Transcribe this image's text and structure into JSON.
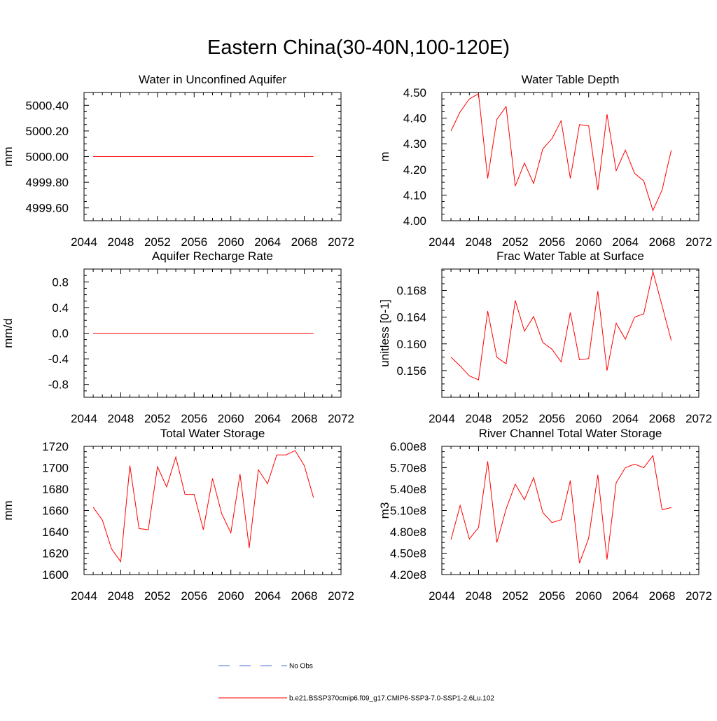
{
  "figure": {
    "title": "Eastern China(30-40N,100-120E)"
  },
  "legend": {
    "obs_label": "No Obs",
    "obs_color": "#4a6fd1",
    "model_label": "b.e21.BSSP370cmip6.f09_g17.CMIP6-SSP3-7.0-SSP1-2.6Lu.102",
    "model_color": "#ff0000"
  },
  "chart_data": [
    {
      "type": "line",
      "title": "Water in Unconfined Aquifer",
      "ylabel": "mm",
      "xlim": [
        2044,
        2072
      ],
      "ylim": [
        4999.5,
        5000.5
      ],
      "xticks": [
        "2044",
        "2048",
        "2052",
        "2056",
        "2060",
        "2064",
        "2068",
        "2072"
      ],
      "yticks": [
        "4999.60",
        "4999.80",
        "5000.00",
        "5000.20",
        "5000.40"
      ],
      "x": [
        2045,
        2046,
        2047,
        2048,
        2049,
        2050,
        2051,
        2052,
        2053,
        2054,
        2055,
        2056,
        2057,
        2058,
        2059,
        2060,
        2061,
        2062,
        2063,
        2064,
        2065,
        2066,
        2067,
        2068,
        2069
      ],
      "series": [
        {
          "values": [
            5000,
            5000,
            5000,
            5000,
            5000,
            5000,
            5000,
            5000,
            5000,
            5000,
            5000,
            5000,
            5000,
            5000,
            5000,
            5000,
            5000,
            5000,
            5000,
            5000,
            5000,
            5000,
            5000,
            5000,
            5000
          ]
        }
      ]
    },
    {
      "type": "line",
      "title": "Water Table Depth",
      "ylabel": "m",
      "xlim": [
        2044,
        2072
      ],
      "ylim": [
        4.0,
        4.5
      ],
      "xticks": [
        "2044",
        "2048",
        "2052",
        "2056",
        "2060",
        "2064",
        "2068",
        "2072"
      ],
      "yticks": [
        "4.00",
        "4.10",
        "4.20",
        "4.30",
        "4.40",
        "4.50"
      ],
      "x": [
        2045,
        2046,
        2047,
        2048,
        2049,
        2050,
        2051,
        2052,
        2053,
        2054,
        2055,
        2056,
        2057,
        2058,
        2059,
        2060,
        2061,
        2062,
        2063,
        2064,
        2065,
        2066,
        2067,
        2068,
        2069
      ],
      "series": [
        {
          "values": [
            4.35,
            4.425,
            4.475,
            4.495,
            4.165,
            4.395,
            4.445,
            4.135,
            4.225,
            4.145,
            4.28,
            4.32,
            4.39,
            4.165,
            4.375,
            4.37,
            4.12,
            4.415,
            4.195,
            4.275,
            4.185,
            4.155,
            4.04,
            4.12,
            4.275
          ]
        }
      ]
    },
    {
      "type": "line",
      "title": "Aquifer Recharge Rate",
      "ylabel": "mm/d",
      "xlim": [
        2044,
        2072
      ],
      "ylim": [
        -1.0,
        1.0
      ],
      "xticks": [
        "2044",
        "2048",
        "2052",
        "2056",
        "2060",
        "2064",
        "2068",
        "2072"
      ],
      "yticks": [
        "-0.8",
        "-0.4",
        "0.0",
        "0.4",
        "0.8"
      ],
      "x": [
        2045,
        2046,
        2047,
        2048,
        2049,
        2050,
        2051,
        2052,
        2053,
        2054,
        2055,
        2056,
        2057,
        2058,
        2059,
        2060,
        2061,
        2062,
        2063,
        2064,
        2065,
        2066,
        2067,
        2068,
        2069
      ],
      "series": [
        {
          "values": [
            0,
            0,
            0,
            0,
            0,
            0,
            0,
            0,
            0,
            0,
            0,
            0,
            0,
            0,
            0,
            0,
            0,
            0,
            0,
            0,
            0,
            0,
            0,
            0,
            0
          ]
        }
      ]
    },
    {
      "type": "line",
      "title": "Frac Water Table at Surface",
      "ylabel": "unitless [0-1]",
      "xlim": [
        2044,
        2072
      ],
      "ylim": [
        0.152,
        0.1712
      ],
      "xticks": [
        "2044",
        "2048",
        "2052",
        "2056",
        "2060",
        "2064",
        "2068",
        "2072"
      ],
      "yticks": [
        "0.156",
        "0.160",
        "0.164",
        "0.168"
      ],
      "x": [
        2045,
        2046,
        2047,
        2048,
        2049,
        2050,
        2051,
        2052,
        2053,
        2054,
        2055,
        2056,
        2057,
        2058,
        2059,
        2060,
        2061,
        2062,
        2063,
        2064,
        2065,
        2066,
        2067,
        2068,
        2069
      ],
      "series": [
        {
          "values": [
            0.158,
            0.1567,
            0.1552,
            0.1546,
            0.1649,
            0.158,
            0.157,
            0.1665,
            0.1619,
            0.1641,
            0.1602,
            0.1592,
            0.1573,
            0.1647,
            0.1576,
            0.1578,
            0.1679,
            0.156,
            0.1631,
            0.1607,
            0.164,
            0.1645,
            0.1708,
            0.1657,
            0.1605
          ]
        }
      ]
    },
    {
      "type": "line",
      "title": "Total Water Storage",
      "ylabel": "mm",
      "xlim": [
        2044,
        2072
      ],
      "ylim": [
        1600,
        1720
      ],
      "xticks": [
        "2044",
        "2048",
        "2052",
        "2056",
        "2060",
        "2064",
        "2068",
        "2072"
      ],
      "yticks": [
        "1600",
        "1620",
        "1640",
        "1660",
        "1680",
        "1700",
        "1720"
      ],
      "x": [
        2045,
        2046,
        2047,
        2048,
        2049,
        2050,
        2051,
        2052,
        2053,
        2054,
        2055,
        2056,
        2057,
        2058,
        2059,
        2060,
        2061,
        2062,
        2063,
        2064,
        2065,
        2066,
        2067,
        2068,
        2069
      ],
      "series": [
        {
          "values": [
            1663,
            1651,
            1624,
            1612,
            1702,
            1643,
            1642,
            1701,
            1682,
            1710,
            1675,
            1675,
            1642,
            1690,
            1657,
            1639,
            1694,
            1625,
            1698,
            1685,
            1712,
            1712,
            1716,
            1702,
            1672
          ]
        }
      ]
    },
    {
      "type": "line",
      "title": "River Channel Total Water Storage",
      "ylabel": "m3",
      "xlim": [
        2044,
        2072
      ],
      "ylim": [
        420000000,
        600000000
      ],
      "xticks": [
        "2044",
        "2048",
        "2052",
        "2056",
        "2060",
        "2064",
        "2068",
        "2072"
      ],
      "yticks": [
        "4.20e8",
        "4.50e8",
        "4.80e8",
        "5.10e8",
        "5.40e8",
        "5.70e8",
        "6.00e8"
      ],
      "x": [
        2045,
        2046,
        2047,
        2048,
        2049,
        2050,
        2051,
        2052,
        2053,
        2054,
        2055,
        2056,
        2057,
        2058,
        2059,
        2060,
        2061,
        2062,
        2063,
        2064,
        2065,
        2066,
        2067,
        2068,
        2069
      ],
      "series": [
        {
          "values": [
            469000000,
            517000000,
            470000000,
            486000000,
            579000000,
            465000000,
            512000000,
            547000000,
            525000000,
            556000000,
            507000000,
            493000000,
            497000000,
            552000000,
            436000000,
            471000000,
            560000000,
            441000000,
            549000000,
            570000000,
            575000000,
            570000000,
            587000000,
            511000000,
            514000000
          ]
        }
      ]
    }
  ]
}
